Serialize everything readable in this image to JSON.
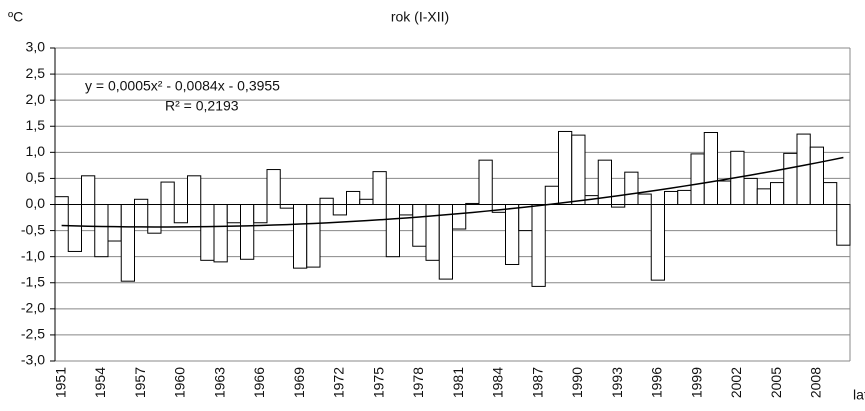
{
  "chart_data": {
    "type": "bar",
    "title": "rok (I-XII)",
    "y_label": "ºC",
    "x_label": "lata",
    "categories": [
      "1951",
      null,
      null,
      "1954",
      null,
      null,
      "1957",
      null,
      null,
      "1960",
      null,
      null,
      "1963",
      null,
      null,
      "1966",
      null,
      null,
      "1969",
      null,
      null,
      "1972",
      null,
      null,
      "1975",
      null,
      null,
      "1978",
      null,
      null,
      "1981",
      null,
      null,
      "1984",
      null,
      null,
      "1987",
      null,
      null,
      "1990",
      null,
      null,
      "1993",
      null,
      null,
      "1996",
      null,
      null,
      "1999",
      null,
      null,
      "2002",
      null,
      null,
      "2005",
      null,
      null,
      "2008",
      null,
      null
    ],
    "values": [
      0.15,
      -0.9,
      0.55,
      -1.0,
      -0.7,
      -1.47,
      0.1,
      -0.55,
      0.43,
      -0.35,
      0.55,
      -1.07,
      -1.1,
      -0.35,
      -1.05,
      -0.35,
      0.67,
      -0.07,
      -1.22,
      -1.2,
      0.12,
      -0.2,
      0.25,
      0.1,
      0.63,
      -1.0,
      -0.2,
      -0.8,
      -1.07,
      -1.43,
      -0.47,
      0.02,
      0.85,
      -0.15,
      -1.15,
      -0.5,
      -1.57,
      0.35,
      1.4,
      1.33,
      0.17,
      0.85,
      -0.05,
      0.62,
      0.2,
      -1.45,
      0.25,
      0.27,
      0.97,
      1.38,
      0.45,
      1.02,
      0.5,
      0.3,
      0.42,
      0.98,
      1.35,
      1.1,
      0.42,
      -0.78
    ],
    "color": "#ffffff",
    "trend": {
      "coefficients": [
        0.0005,
        -0.0084,
        -0.3955
      ],
      "equation": "y = 0,0005x² - 0,0084x - 0,3955",
      "r2": "R² = 0,2193"
    },
    "ylim": [
      -3.0,
      3.0
    ],
    "yticks": [
      {
        "value": -3.0,
        "label": "-3,0"
      },
      {
        "value": -2.5,
        "label": "-2,5"
      },
      {
        "value": -2.0,
        "label": "-2,0"
      },
      {
        "value": -1.5,
        "label": "-1,5"
      },
      {
        "value": -1.0,
        "label": "-1,0"
      },
      {
        "value": -0.5,
        "label": "-0,5"
      },
      {
        "value": 0.0,
        "label": "0,0"
      },
      {
        "value": 0.5,
        "label": "0,5"
      },
      {
        "value": 1.0,
        "label": "1,0"
      },
      {
        "value": 1.5,
        "label": "1,5"
      },
      {
        "value": 2.0,
        "label": "2,0"
      },
      {
        "value": 2.5,
        "label": "2,5"
      },
      {
        "value": 3.0,
        "label": "3,0"
      }
    ],
    "grid": true
  }
}
